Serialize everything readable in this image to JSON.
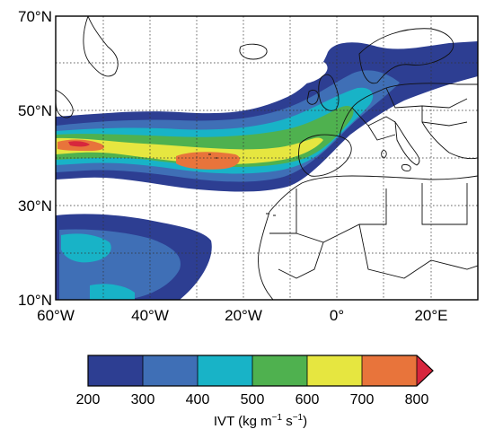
{
  "map": {
    "lat_labels": [
      "70°N",
      "50°N",
      "30°N",
      "10°N"
    ],
    "lon_labels": [
      "60°W",
      "40°W",
      "20°W",
      "0°",
      "20°E"
    ],
    "graticule": "dotted",
    "extent": {
      "lon": [
        -60,
        30
      ],
      "lat": [
        10,
        70
      ]
    }
  },
  "colorbar": {
    "ticks": [
      "200",
      "300",
      "400",
      "500",
      "600",
      "700",
      "800"
    ],
    "colors": [
      "#2d3e92",
      "#3f6fb6",
      "#18b3c7",
      "#4fb14f",
      "#e6e640",
      "#e8743b",
      "#d7263d"
    ],
    "extend": "max",
    "title": "IVT (kg m",
    "title_sup1": "−1",
    "title_mid": " s",
    "title_sup2": "−1",
    "title_end": ")"
  },
  "colors": {
    "level_300": "#2d3e92",
    "level_400": "#3f6fb6",
    "level_500": "#18b3c7",
    "level_600": "#4fb14f",
    "level_700": "#e6e640",
    "level_800": "#e8743b",
    "level_max": "#d7263d"
  }
}
